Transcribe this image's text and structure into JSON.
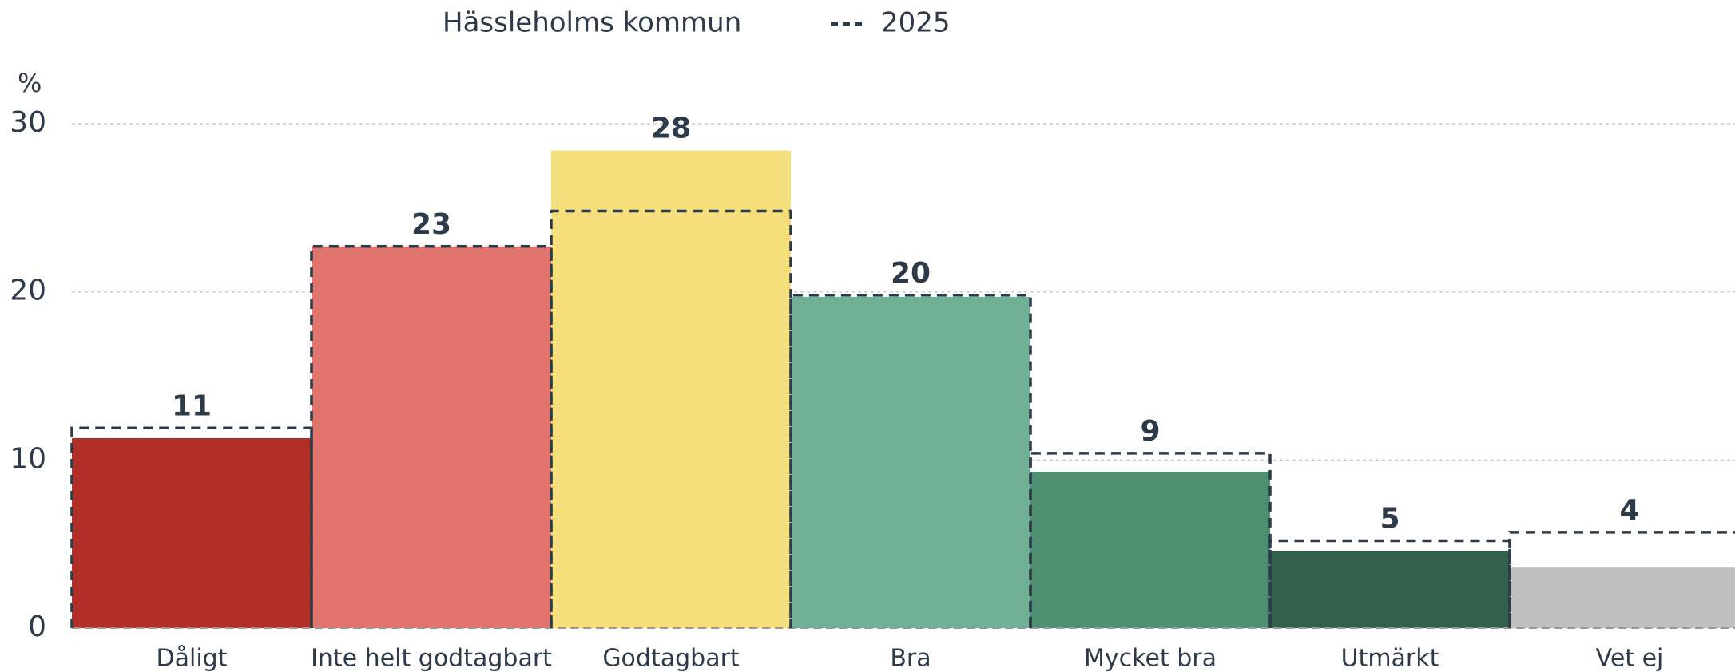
{
  "chart_data": {
    "type": "bar",
    "categories": [
      "Dåligt",
      "Inte helt godtagbart",
      "Godtagbart",
      "Bra",
      "Mycket bra",
      "Utmärkt",
      "Vet ej"
    ],
    "series": [
      {
        "name": "Hässleholms kommun",
        "colors": [
          "#b02e26",
          "#e0736b",
          "#f5df7b",
          "#70b195",
          "#4d8f70",
          "#33604b",
          "#bfbfbf"
        ],
        "values": [
          11.3,
          22.7,
          28.4,
          19.7,
          9.3,
          4.6,
          3.6
        ],
        "value_labels": [
          "11",
          "23",
          "28",
          "20",
          "9",
          "5",
          "4"
        ]
      },
      {
        "name": "2025",
        "color": "#2d3a4a",
        "style": "dashed",
        "values": [
          11.9,
          22.7,
          24.8,
          19.8,
          10.4,
          5.2,
          5.7
        ]
      }
    ],
    "ylabel": "%",
    "ylim": [
      0,
      30
    ],
    "yticks": [
      0,
      10,
      20,
      30
    ],
    "grid": true
  }
}
